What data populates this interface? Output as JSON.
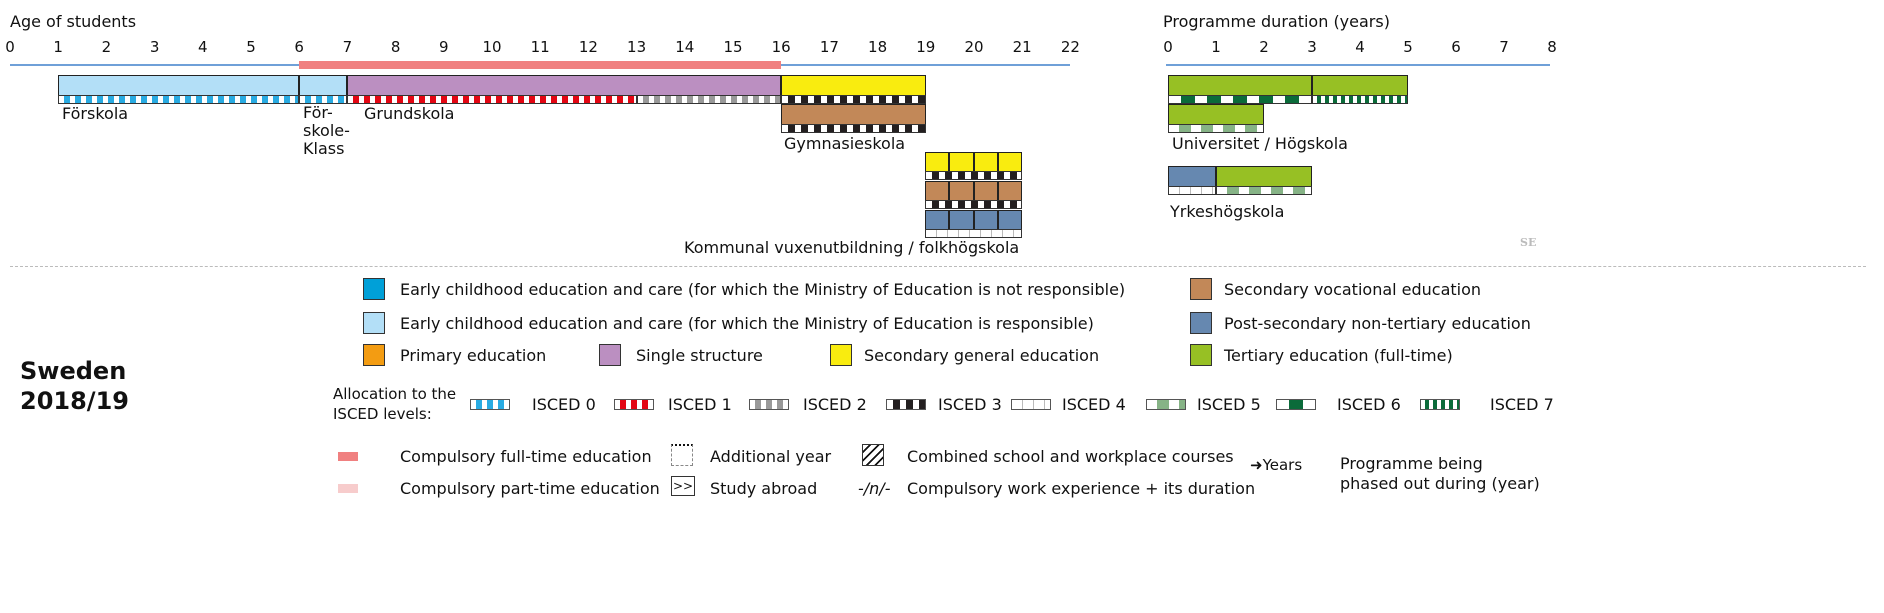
{
  "age_axis": {
    "title": "Age of students",
    "ticks": [
      0,
      1,
      2,
      3,
      4,
      5,
      6,
      7,
      8,
      9,
      10,
      11,
      12,
      13,
      14,
      15,
      16,
      17,
      18,
      19,
      20,
      21,
      22
    ]
  },
  "duration_axis": {
    "title": "Programme duration (years)",
    "ticks": [
      0,
      1,
      2,
      3,
      4,
      5,
      6,
      7,
      8
    ]
  },
  "compulsory_full_time": {
    "from_age": 6,
    "to_age": 16,
    "color": "#f08080"
  },
  "colors": {
    "ecec_not_resp": "#00a0d8",
    "ecec_resp": "#b3dff7",
    "primary": "#f39c12",
    "single": "#bb8fc1",
    "sec_general": "#f9ec0f",
    "sec_vocational": "#c28858",
    "post_sec": "#6688b0",
    "tertiary": "#97c024"
  },
  "age_bars": [
    {
      "start": 1,
      "end": 6,
      "row": 0,
      "color": "ecec_resp",
      "isced": 0
    },
    {
      "start": 6,
      "end": 7,
      "row": 0,
      "color": "ecec_resp",
      "isced": 0
    },
    {
      "start": 7,
      "end": 13,
      "row": 0,
      "color": "single",
      "isced": 1,
      "fill_to": 16
    },
    {
      "start": 13,
      "end": 16,
      "row": 0,
      "color": null,
      "isced": 2
    },
    {
      "start": 16,
      "end": 19,
      "row": 0,
      "color": "sec_general",
      "isced": 3
    },
    {
      "start": 16,
      "end": 19,
      "row": 1,
      "color": "sec_vocational",
      "isced": 3
    }
  ],
  "labels": {
    "forskola": "Förskola",
    "forskoleklass_1": "För-",
    "forskoleklass_2": "skole-",
    "forskoleklass_3": "Klass",
    "grundskola": "Grundskola",
    "gymnasieskola": "Gymnasieskola",
    "komvux": "Kommunal vuxenutbildning / folkhögskola",
    "universitet": "Universitet / Högskola",
    "yrkeshogskola": "Yrkeshögskola",
    "country_code": "SE"
  },
  "adult_rows": [
    {
      "color": "sec_general",
      "isced": 3
    },
    {
      "color": "sec_vocational",
      "isced": 3
    },
    {
      "color": "post_sec",
      "isced": 4
    }
  ],
  "duration_bars": [
    {
      "start": 0,
      "end": 3,
      "row": "uni1",
      "color": "tertiary",
      "isced": 6
    },
    {
      "start": 3,
      "end": 5,
      "row": "uni1",
      "color": "tertiary",
      "isced": 7
    },
    {
      "start": 0,
      "end": 2,
      "row": "uni2",
      "color": "tertiary",
      "isced": 5
    },
    {
      "start": 0,
      "end": 1,
      "row": "yh",
      "color": "post_sec",
      "isced": 4
    },
    {
      "start": 1,
      "end": 3,
      "row": "yh",
      "color": "tertiary",
      "isced": 5
    }
  ],
  "country": {
    "name": "Sweden",
    "year": "2018/19"
  },
  "legend": {
    "ecec_not_resp": "Early childhood education and care (for which the Ministry of Education is not responsible)",
    "ecec_resp": "Early childhood education and care (for which the Ministry of Education is responsible)",
    "primary": "Primary education",
    "single": "Single structure",
    "sec_general": "Secondary general education",
    "sec_vocational": "Secondary vocational education",
    "post_sec": "Post-secondary non-tertiary education",
    "tertiary": "Tertiary education (full-time)",
    "allocation_1": "Allocation to the",
    "allocation_2": "ISCED levels:",
    "isced": [
      "ISCED 0",
      "ISCED 1",
      "ISCED 2",
      "ISCED 3",
      "ISCED 4",
      "ISCED 5",
      "ISCED 6",
      "ISCED 7"
    ],
    "comp_full": "Compulsory full-time education",
    "comp_part": "Compulsory part-time education",
    "additional_year": "Additional year",
    "study_abroad": "Study abroad",
    "study_abroad_symbol": ">>",
    "combined": "Combined school and workplace courses",
    "work_exp_symbol": "-/n/-",
    "work_exp": "Compulsory work experience + its duration",
    "years_symbol": "Years",
    "phased_1": "Programme being",
    "phased_2": "phased out during (year)"
  }
}
